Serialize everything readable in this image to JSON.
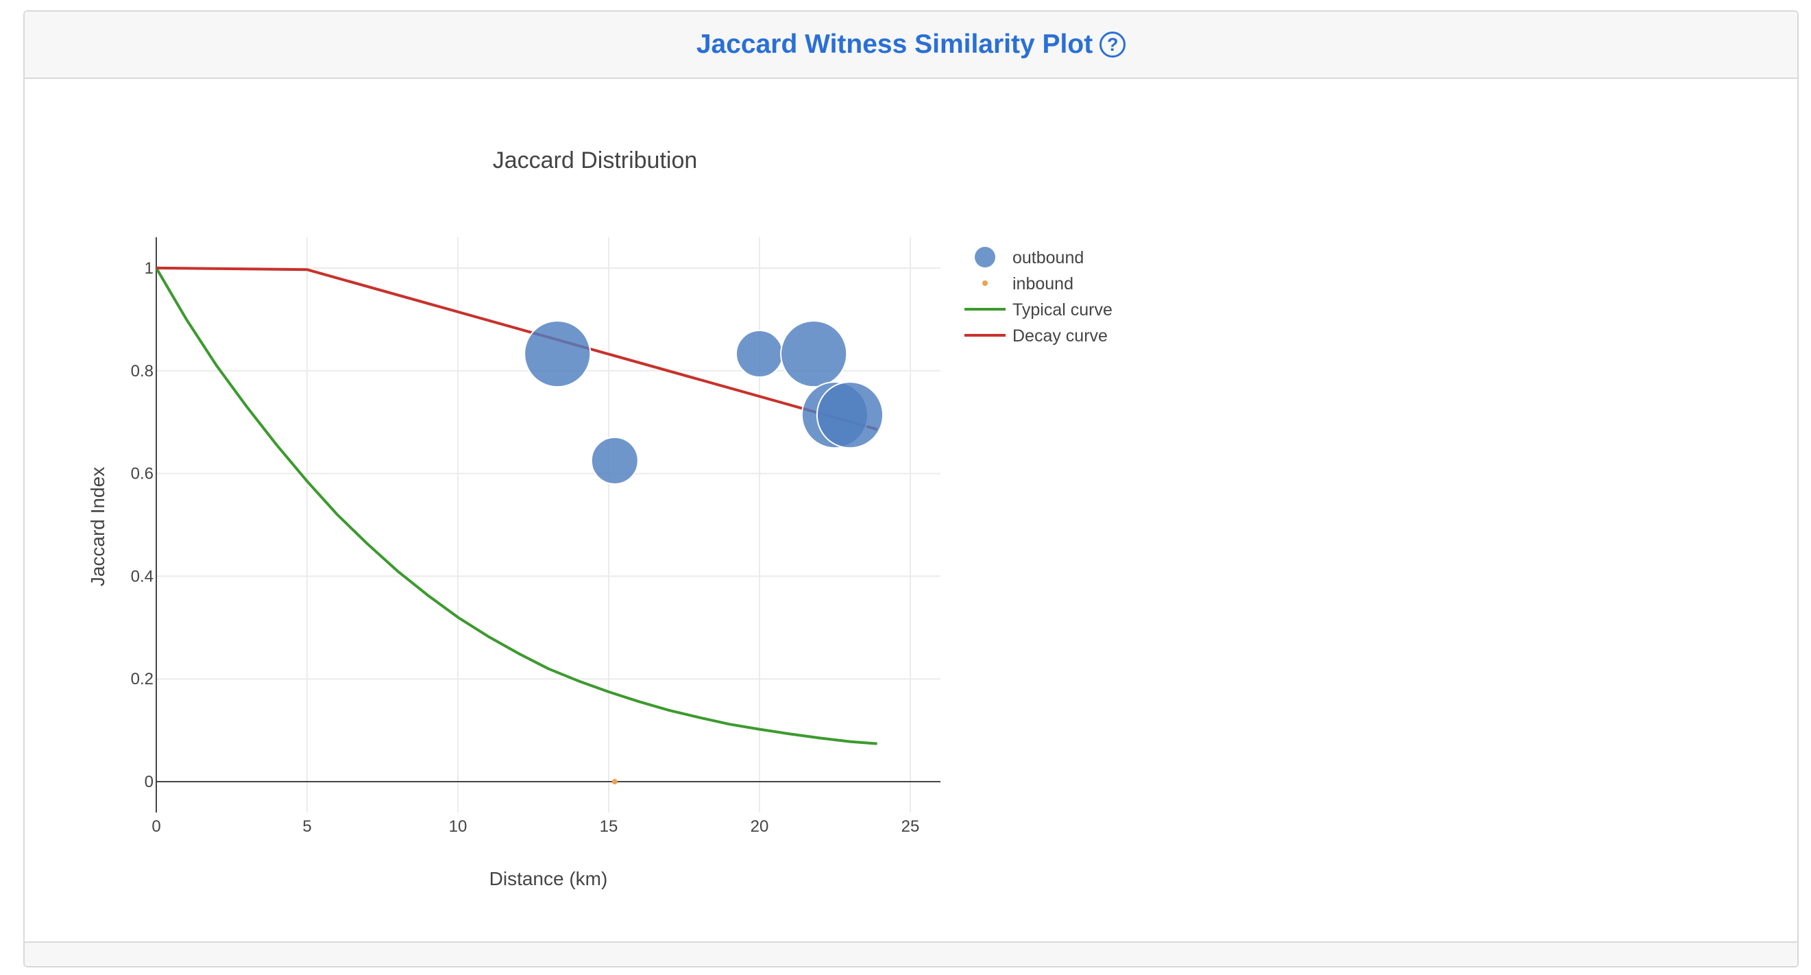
{
  "panel": {
    "title": "Jaccard Witness Similarity Plot",
    "help_glyph": "?"
  },
  "chart_data": {
    "type": "scatter",
    "title": "Jaccard Distribution",
    "xlabel": "Distance (km)",
    "ylabel": "Jaccard Index",
    "xlim": [
      0,
      26
    ],
    "ylim": [
      -0.06,
      1.06
    ],
    "x_ticks": [
      0,
      5,
      10,
      15,
      20,
      25
    ],
    "y_ticks": [
      0,
      0.2,
      0.4,
      0.6,
      0.8,
      1
    ],
    "y_tick_labels": [
      "0",
      "0.2",
      "0.4",
      "0.6",
      "0.8",
      "1"
    ],
    "grid": true,
    "legend_position": "top-right-outside",
    "series": [
      {
        "name": "outbound",
        "kind": "bubble",
        "color": "#4f7fbf",
        "points": [
          {
            "x": 13.3,
            "y": 0.833,
            "size": 5
          },
          {
            "x": 15.2,
            "y": 0.625,
            "size": 2.5
          },
          {
            "x": 20.0,
            "y": 0.833,
            "size": 2.5
          },
          {
            "x": 21.8,
            "y": 0.833,
            "size": 5
          },
          {
            "x": 22.5,
            "y": 0.714,
            "size": 5
          },
          {
            "x": 23.0,
            "y": 0.714,
            "size": 5
          }
        ]
      },
      {
        "name": "inbound",
        "kind": "point",
        "color": "#f0a050",
        "points": [
          {
            "x": 15.2,
            "y": 0
          }
        ]
      },
      {
        "name": "Typical curve",
        "kind": "line",
        "color": "#3c9a2e",
        "x": [
          0,
          1,
          2,
          3,
          4,
          5,
          6,
          7,
          8,
          9,
          10,
          11,
          12,
          13,
          14,
          15,
          16,
          17,
          18,
          19,
          20,
          21,
          22,
          23,
          23.9
        ],
        "y": [
          1.0,
          0.9,
          0.81,
          0.73,
          0.655,
          0.585,
          0.52,
          0.463,
          0.41,
          0.363,
          0.32,
          0.283,
          0.25,
          0.22,
          0.196,
          0.175,
          0.156,
          0.139,
          0.125,
          0.112,
          0.102,
          0.093,
          0.085,
          0.078,
          0.074
        ]
      },
      {
        "name": "Decay curve",
        "kind": "line",
        "color": "#c8312b",
        "x": [
          0,
          5,
          23.9
        ],
        "y": [
          1.0,
          0.997,
          0.686
        ]
      }
    ]
  }
}
